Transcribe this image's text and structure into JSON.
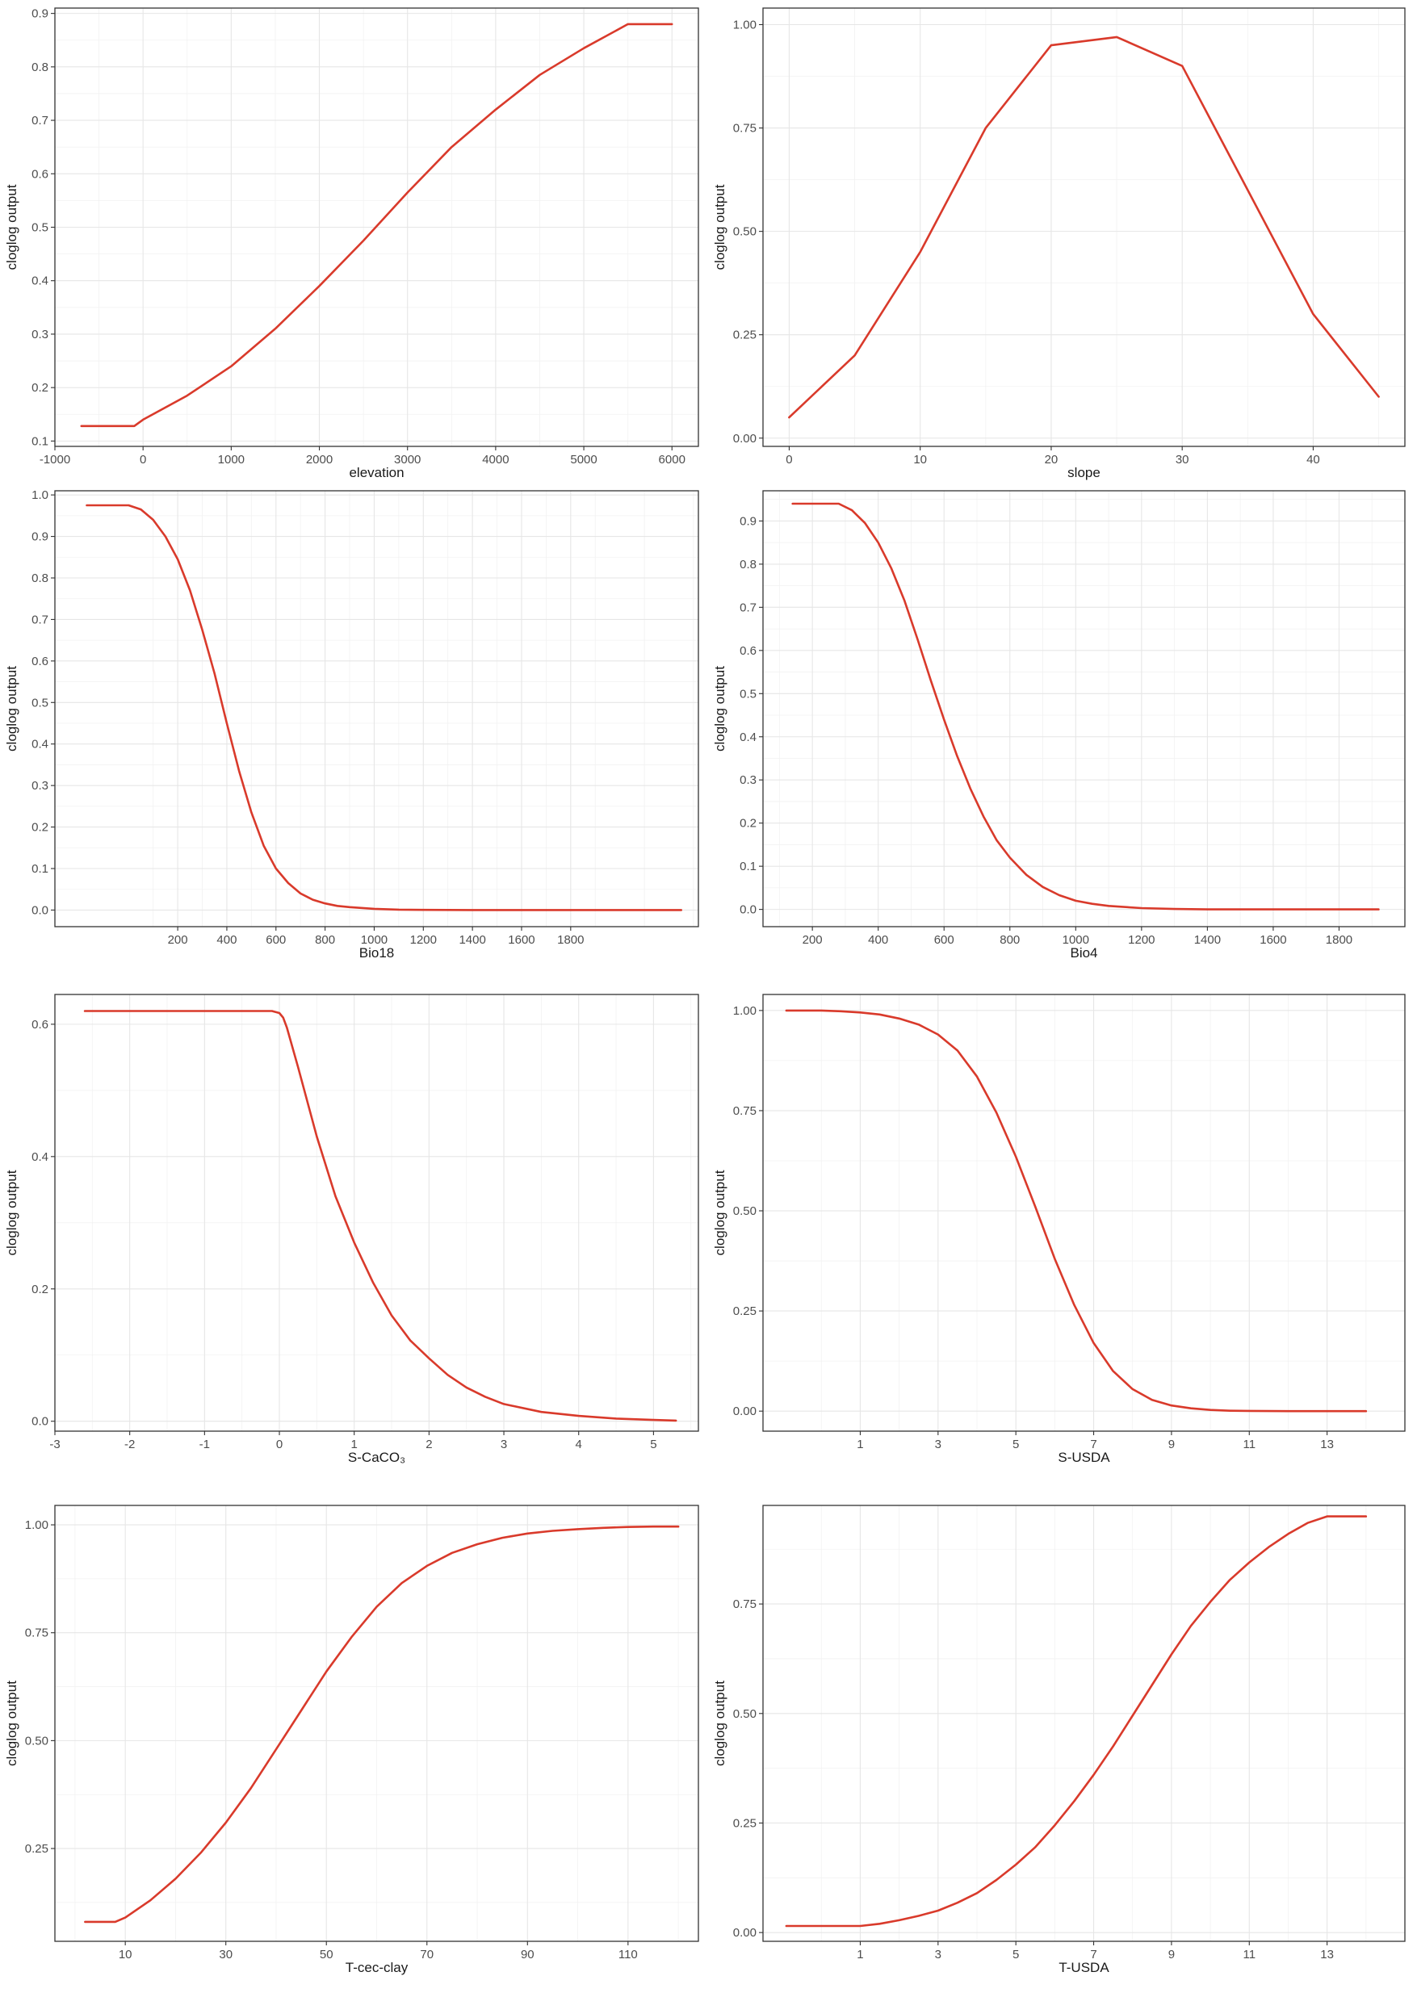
{
  "chart_data": [
    {
      "type": "line",
      "xlabel": "elevation",
      "ylabel": "cloglog output",
      "xlim": [
        -1000,
        6300
      ],
      "ylim": [
        0.09,
        0.91
      ],
      "xticks": [
        -1000,
        0,
        1000,
        2000,
        3000,
        4000,
        5000,
        6000
      ],
      "xtick_labels": [
        "-1000",
        "0",
        "1000",
        "2000",
        "3000",
        "4000",
        "5000",
        "6000"
      ],
      "yticks": [
        0.1,
        0.2,
        0.3,
        0.4,
        0.5,
        0.6,
        0.7,
        0.8,
        0.9
      ],
      "ytick_labels": [
        "0.1",
        "0.2",
        "0.3",
        "0.4",
        "0.5",
        "0.6",
        "0.7",
        "0.8",
        "0.9"
      ],
      "line_color": "#d93a2b",
      "grid": true,
      "x": [
        -700,
        -100,
        0,
        500,
        1000,
        1500,
        2000,
        2500,
        3000,
        3500,
        4000,
        4500,
        5000,
        5500,
        6000
      ],
      "y": [
        0.128,
        0.128,
        0.14,
        0.185,
        0.24,
        0.31,
        0.39,
        0.475,
        0.565,
        0.65,
        0.72,
        0.785,
        0.835,
        0.88,
        0.88
      ]
    },
    {
      "type": "line",
      "xlabel": "slope",
      "ylabel": "cloglog output",
      "xlim": [
        -2,
        47
      ],
      "ylim": [
        -0.02,
        1.04
      ],
      "xticks": [
        0,
        10,
        20,
        30,
        40
      ],
      "xtick_labels": [
        "0",
        "10",
        "20",
        "30",
        "40"
      ],
      "yticks": [
        0,
        0.25,
        0.5,
        0.75,
        1.0
      ],
      "ytick_labels": [
        "0.00",
        "0.25",
        "0.50",
        "0.75",
        "1.00"
      ],
      "line_color": "#d93a2b",
      "grid": true,
      "x": [
        0,
        5,
        10,
        15,
        20,
        25,
        30,
        35,
        40,
        45
      ],
      "y": [
        0.05,
        0.2,
        0.45,
        0.75,
        0.95,
        0.97,
        0.9,
        0.6,
        0.3,
        0.1
      ]
    },
    {
      "type": "line",
      "xlabel": "Bio18",
      "ylabel": "cloglog output",
      "xlim": [
        -300,
        2320
      ],
      "ylim": [
        -0.04,
        1.01
      ],
      "xticks": [
        200,
        400,
        600,
        800,
        1000,
        1200,
        1400,
        1600,
        1800
      ],
      "xtick_labels": [
        "200",
        "400",
        "600",
        "800",
        "1000",
        "1200",
        "1400",
        "1600",
        "1800"
      ],
      "yticks": [
        0,
        0.1,
        0.2,
        0.3,
        0.4,
        0.5,
        0.6,
        0.7,
        0.8,
        0.9,
        1.0
      ],
      "ytick_labels": [
        "0.0",
        "0.1",
        "0.2",
        "0.3",
        "0.4",
        "0.5",
        "0.6",
        "0.7",
        "0.8",
        "0.9",
        "1.0"
      ],
      "line_color": "#d93a2b",
      "grid": true,
      "x": [
        -170,
        0,
        50,
        100,
        150,
        200,
        250,
        300,
        350,
        400,
        450,
        500,
        550,
        600,
        650,
        700,
        750,
        800,
        850,
        900,
        1000,
        1100,
        1200,
        1400,
        1600,
        1800,
        2000,
        2250
      ],
      "y": [
        0.975,
        0.975,
        0.965,
        0.94,
        0.9,
        0.845,
        0.77,
        0.675,
        0.57,
        0.45,
        0.335,
        0.235,
        0.155,
        0.1,
        0.065,
        0.04,
        0.025,
        0.016,
        0.01,
        0.007,
        0.003,
        0.001,
        0.0005,
        0,
        0,
        0,
        0,
        0
      ]
    },
    {
      "type": "line",
      "xlabel": "Bio4",
      "ylabel": "cloglog output",
      "xlim": [
        50,
        2000
      ],
      "ylim": [
        -0.04,
        0.97
      ],
      "xticks": [
        200,
        400,
        600,
        800,
        1000,
        1200,
        1400,
        1600,
        1800
      ],
      "xtick_labels": [
        "200",
        "400",
        "600",
        "800",
        "1000",
        "1200",
        "1400",
        "1600",
        "1800"
      ],
      "yticks": [
        0,
        0.1,
        0.2,
        0.3,
        0.4,
        0.5,
        0.6,
        0.7,
        0.8,
        0.9
      ],
      "ytick_labels": [
        "0.0",
        "0.1",
        "0.2",
        "0.3",
        "0.4",
        "0.5",
        "0.6",
        "0.7",
        "0.8",
        "0.9"
      ],
      "line_color": "#d93a2b",
      "grid": true,
      "x": [
        140,
        280,
        320,
        360,
        400,
        440,
        480,
        520,
        560,
        600,
        640,
        680,
        720,
        760,
        800,
        850,
        900,
        950,
        1000,
        1050,
        1100,
        1200,
        1300,
        1400,
        1600,
        1800,
        1920
      ],
      "y": [
        0.94,
        0.94,
        0.925,
        0.895,
        0.85,
        0.79,
        0.715,
        0.625,
        0.53,
        0.44,
        0.355,
        0.28,
        0.215,
        0.16,
        0.12,
        0.08,
        0.052,
        0.033,
        0.02,
        0.013,
        0.008,
        0.003,
        0.001,
        0,
        0,
        0,
        0
      ]
    },
    {
      "type": "line",
      "xlabel": "S-CaCO₃",
      "ylabel": "cloglog output",
      "xlim": [
        -3,
        5.6
      ],
      "ylim": [
        -0.015,
        0.645
      ],
      "xticks": [
        -3,
        -2,
        -1,
        0,
        1,
        2,
        3,
        4,
        5
      ],
      "xtick_labels": [
        "-3",
        "-2",
        "-1",
        "0",
        "1",
        "2",
        "3",
        "4",
        "5"
      ],
      "yticks": [
        0,
        0.2,
        0.4,
        0.6
      ],
      "ytick_labels": [
        "0.0",
        "0.2",
        "0.4",
        "0.6"
      ],
      "line_color": "#d93a2b",
      "grid": true,
      "x": [
        -2.6,
        -0.1,
        0,
        0.05,
        0.1,
        0.25,
        0.5,
        0.75,
        1.0,
        1.25,
        1.5,
        1.75,
        2.0,
        2.25,
        2.5,
        2.75,
        3.0,
        3.5,
        4.0,
        4.5,
        5.0,
        5.3
      ],
      "y": [
        0.62,
        0.62,
        0.617,
        0.61,
        0.595,
        0.535,
        0.43,
        0.34,
        0.27,
        0.21,
        0.16,
        0.122,
        0.095,
        0.07,
        0.051,
        0.037,
        0.026,
        0.014,
        0.008,
        0.004,
        0.002,
        0.001
      ]
    },
    {
      "type": "line",
      "xlabel": "S-USDA",
      "ylabel": "cloglog output",
      "xlim": [
        -1.5,
        15
      ],
      "ylim": [
        -0.05,
        1.04
      ],
      "xticks": [
        1,
        3,
        5,
        7,
        9,
        11,
        13
      ],
      "xtick_labels": [
        "1",
        "3",
        "5",
        "7",
        "9",
        "11",
        "13"
      ],
      "yticks": [
        0,
        0.25,
        0.5,
        0.75,
        1.0
      ],
      "ytick_labels": [
        "0.00",
        "0.25",
        "0.50",
        "0.75",
        "1.00"
      ],
      "line_color": "#d93a2b",
      "grid": true,
      "x": [
        -0.9,
        0,
        0.5,
        1,
        1.5,
        2,
        2.5,
        3,
        3.5,
        4,
        4.5,
        5,
        5.5,
        6,
        6.5,
        7,
        7.5,
        8,
        8.5,
        9,
        9.5,
        10,
        10.5,
        11,
        12,
        13,
        14
      ],
      "y": [
        1.0,
        1.0,
        0.998,
        0.995,
        0.99,
        0.98,
        0.965,
        0.94,
        0.9,
        0.835,
        0.745,
        0.635,
        0.51,
        0.38,
        0.265,
        0.17,
        0.1,
        0.055,
        0.028,
        0.014,
        0.007,
        0.003,
        0.001,
        0.0005,
        0,
        0,
        0
      ]
    },
    {
      "type": "line",
      "xlabel": "T-cec-clay",
      "ylabel": "cloglog output",
      "xlim": [
        -4,
        124
      ],
      "ylim": [
        0.035,
        1.045
      ],
      "xticks": [
        10,
        30,
        50,
        70,
        90,
        110
      ],
      "xtick_labels": [
        "10",
        "30",
        "50",
        "70",
        "90",
        "110"
      ],
      "yticks": [
        0.25,
        0.5,
        0.75,
        1.0
      ],
      "ytick_labels": [
        "0.25",
        "0.50",
        "0.75",
        "1.00"
      ],
      "line_color": "#d93a2b",
      "grid": true,
      "x": [
        2,
        8,
        10,
        15,
        20,
        25,
        30,
        35,
        40,
        45,
        50,
        55,
        60,
        65,
        70,
        75,
        80,
        85,
        90,
        95,
        100,
        105,
        110,
        115,
        120
      ],
      "y": [
        0.08,
        0.08,
        0.09,
        0.13,
        0.18,
        0.24,
        0.31,
        0.39,
        0.48,
        0.57,
        0.66,
        0.74,
        0.81,
        0.865,
        0.905,
        0.935,
        0.955,
        0.97,
        0.98,
        0.986,
        0.99,
        0.993,
        0.995,
        0.996,
        0.996
      ]
    },
    {
      "type": "line",
      "xlabel": "T-USDA",
      "ylabel": "cloglog output",
      "xlim": [
        -1.5,
        15
      ],
      "ylim": [
        -0.02,
        0.975
      ],
      "xticks": [
        1,
        3,
        5,
        7,
        9,
        11,
        13
      ],
      "xtick_labels": [
        "1",
        "3",
        "5",
        "7",
        "9",
        "11",
        "13"
      ],
      "yticks": [
        0,
        0.25,
        0.5,
        0.75
      ],
      "ytick_labels": [
        "0.00",
        "0.25",
        "0.50",
        "0.75"
      ],
      "line_color": "#d93a2b",
      "grid": true,
      "x": [
        -0.9,
        1,
        1.5,
        2,
        2.5,
        3,
        3.5,
        4,
        4.5,
        5,
        5.5,
        6,
        6.5,
        7,
        7.5,
        8,
        8.5,
        9,
        9.5,
        10,
        10.5,
        11,
        11.5,
        12,
        12.5,
        13,
        14
      ],
      "y": [
        0.015,
        0.015,
        0.02,
        0.028,
        0.038,
        0.05,
        0.068,
        0.09,
        0.12,
        0.155,
        0.195,
        0.245,
        0.3,
        0.36,
        0.425,
        0.495,
        0.565,
        0.635,
        0.7,
        0.755,
        0.805,
        0.845,
        0.88,
        0.91,
        0.935,
        0.95,
        0.95
      ]
    }
  ]
}
